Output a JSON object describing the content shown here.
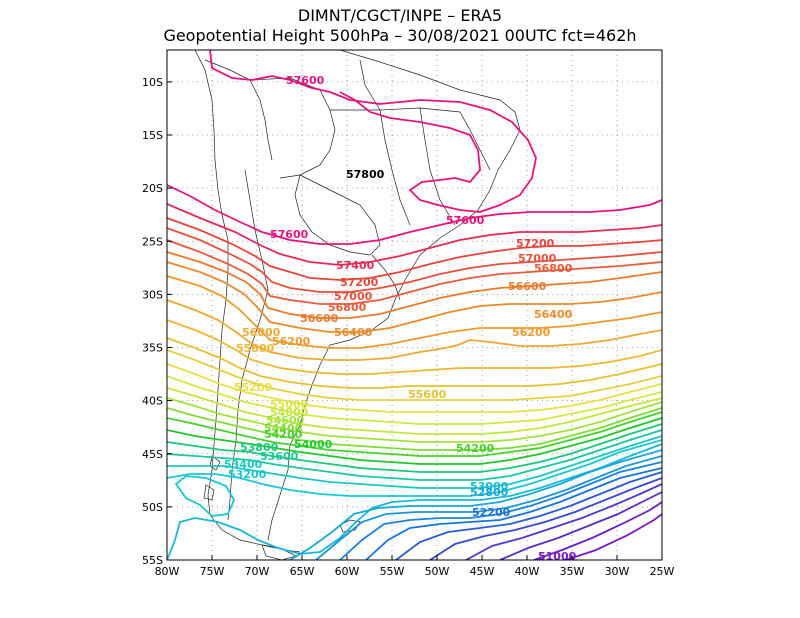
{
  "header": {
    "line1": "DIMNT/CGCT/INPE  –  ERA5",
    "line2": "Geopotential Height 500hPa –  30/08/2021 00UTC fct=462h"
  },
  "map": {
    "lon_range": [
      -80,
      -25
    ],
    "lat_range": [
      -55,
      -7
    ],
    "x_ticks": [
      "80W",
      "75W",
      "70W",
      "65W",
      "60W",
      "55W",
      "50W",
      "45W",
      "40W",
      "35W",
      "30W",
      "25W"
    ],
    "y_ticks": [
      "10S",
      "15S",
      "20S",
      "25S",
      "30S",
      "35S",
      "40S",
      "45S",
      "50S",
      "55S"
    ],
    "grid": "dotted",
    "contour_interval": 200,
    "colors": {
      "57600": "#e8127e",
      "57400": "#e62a55",
      "57200": "#e8443a",
      "57000": "#e8503a",
      "56800": "#ea5a3a",
      "56600": "#ec7a2a",
      "56400": "#ee8a2a",
      "56200": "#f09a2a",
      "56000": "#eeaa30",
      "55800": "#f0b830",
      "55600": "#e6c030",
      "55400": "#e6d040",
      "55200": "#e8e040",
      "55000": "#d8e640",
      "54800": "#bfe83a",
      "54600": "#a2e23a",
      "54400": "#7fdc32",
      "54200": "#44d22a",
      "54000": "#1ec82a",
      "53800": "#18c87a",
      "53600": "#18c8a0",
      "53400": "#18c8c4",
      "53200": "#18c8d4",
      "53000": "#18b8d8",
      "52800": "#18a8dc",
      "52600": "#1a96dc",
      "52400": "#1a84dc",
      "52200": "#1a72dc",
      "52000": "#2a5ad8",
      "51800": "#3a48d4",
      "51600": "#4a3ad0",
      "51400": "#5a2ccc",
      "51200": "#6a20c8",
      "51000": "#7a18c4"
    },
    "contour_labels": [
      {
        "text": "57600"
      },
      {
        "text": "57800"
      },
      {
        "text": "57600"
      },
      {
        "text": "57600"
      },
      {
        "text": "57400"
      },
      {
        "text": "57200"
      },
      {
        "text": "57200"
      },
      {
        "text": "57000"
      },
      {
        "text": "57000"
      },
      {
        "text": "56800"
      },
      {
        "text": "56800"
      },
      {
        "text": "56600"
      },
      {
        "text": "56600"
      },
      {
        "text": "56400"
      },
      {
        "text": "56400"
      },
      {
        "text": "56200"
      },
      {
        "text": "56200"
      },
      {
        "text": "56000"
      },
      {
        "text": "55800"
      },
      {
        "text": "55600"
      },
      {
        "text": "55200"
      },
      {
        "text": "55000"
      },
      {
        "text": "54800"
      },
      {
        "text": "54600"
      },
      {
        "text": "54400"
      },
      {
        "text": "54200"
      },
      {
        "text": "54000"
      },
      {
        "text": "54200"
      },
      {
        "text": "53800"
      },
      {
        "text": "53600"
      },
      {
        "text": "53400"
      },
      {
        "text": "53200"
      },
      {
        "text": "53000"
      },
      {
        "text": "52800"
      },
      {
        "text": "52200"
      },
      {
        "text": "51000"
      }
    ]
  }
}
